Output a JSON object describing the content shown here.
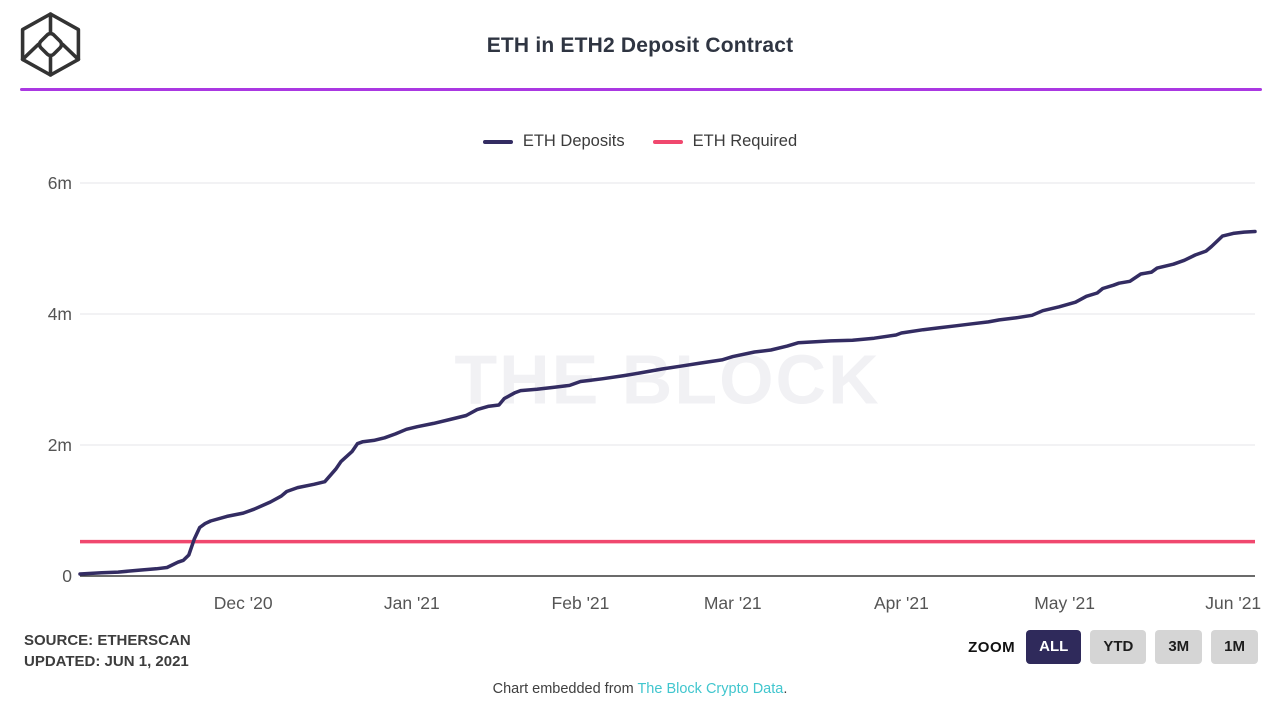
{
  "header": {
    "title": "ETH in ETH2 Deposit Contract"
  },
  "watermark": "THE BLOCK",
  "colors": {
    "accent_rule": "#aa38e2",
    "deposits_line": "#332c62",
    "required_line": "#f0486e",
    "active_button_bg": "#2f2a5b",
    "gridline": "#ebebee",
    "axis_line": "#3a3a3a",
    "axis_text": "#555555",
    "watermark_text": "#f1f1f4",
    "link_teal": "#41c6ce"
  },
  "chart_data": {
    "type": "line",
    "title": "ETH in ETH2 Deposit Contract",
    "legend_position": "top-center",
    "grid": "horizontal",
    "x_axis": {
      "type": "time",
      "start": "2020-11-01",
      "end": "2021-06-05",
      "ticks": [
        {
          "date": "2020-12-01",
          "label": "Dec '20"
        },
        {
          "date": "2021-01-01",
          "label": "Jan '21"
        },
        {
          "date": "2021-02-01",
          "label": "Feb '21"
        },
        {
          "date": "2021-03-01",
          "label": "Mar '21"
        },
        {
          "date": "2021-04-01",
          "label": "Apr '21"
        },
        {
          "date": "2021-05-01",
          "label": "May '21"
        },
        {
          "date": "2021-06-01",
          "label": "Jun '21"
        }
      ]
    },
    "y_axis": {
      "unit": "millions of ETH",
      "min": 0,
      "max": 6,
      "gridlines": [
        2,
        4,
        6
      ],
      "ticks": [
        {
          "value": 0,
          "label": "0"
        },
        {
          "value": 2,
          "label": "2m"
        },
        {
          "value": 4,
          "label": "4m"
        },
        {
          "value": 6,
          "label": "6m"
        }
      ]
    },
    "series": [
      {
        "name": "ETH Deposits",
        "type": "line",
        "color": "#332c62",
        "points": [
          [
            "2020-11-01",
            0.03
          ],
          [
            "2020-11-05",
            0.05
          ],
          [
            "2020-11-08",
            0.06
          ],
          [
            "2020-11-12",
            0.09
          ],
          [
            "2020-11-15",
            0.11
          ],
          [
            "2020-11-17",
            0.13
          ],
          [
            "2020-11-19",
            0.21
          ],
          [
            "2020-11-20",
            0.24
          ],
          [
            "2020-11-21",
            0.32
          ],
          [
            "2020-11-22",
            0.56
          ],
          [
            "2020-11-23",
            0.74
          ],
          [
            "2020-11-24",
            0.8
          ],
          [
            "2020-11-25",
            0.84
          ],
          [
            "2020-11-28",
            0.91
          ],
          [
            "2020-12-01",
            0.96
          ],
          [
            "2020-12-03",
            1.02
          ],
          [
            "2020-12-06",
            1.13
          ],
          [
            "2020-12-08",
            1.22
          ],
          [
            "2020-12-09",
            1.29
          ],
          [
            "2020-12-11",
            1.35
          ],
          [
            "2020-12-14",
            1.4
          ],
          [
            "2020-12-16",
            1.44
          ],
          [
            "2020-12-18",
            1.63
          ],
          [
            "2020-12-19",
            1.75
          ],
          [
            "2020-12-21",
            1.9
          ],
          [
            "2020-12-22",
            2.02
          ],
          [
            "2020-12-23",
            2.05
          ],
          [
            "2020-12-25",
            2.07
          ],
          [
            "2020-12-27",
            2.11
          ],
          [
            "2020-12-29",
            2.17
          ],
          [
            "2020-12-31",
            2.24
          ],
          [
            "2021-01-02",
            2.28
          ],
          [
            "2021-01-05",
            2.33
          ],
          [
            "2021-01-08",
            2.39
          ],
          [
            "2021-01-11",
            2.45
          ],
          [
            "2021-01-13",
            2.54
          ],
          [
            "2021-01-15",
            2.59
          ],
          [
            "2021-01-17",
            2.61
          ],
          [
            "2021-01-18",
            2.71
          ],
          [
            "2021-01-20",
            2.8
          ],
          [
            "2021-01-21",
            2.83
          ],
          [
            "2021-01-24",
            2.85
          ],
          [
            "2021-01-27",
            2.88
          ],
          [
            "2021-01-30",
            2.91
          ],
          [
            "2021-02-01",
            2.97
          ],
          [
            "2021-02-05",
            3.01
          ],
          [
            "2021-02-09",
            3.06
          ],
          [
            "2021-02-12",
            3.1
          ],
          [
            "2021-02-16",
            3.16
          ],
          [
            "2021-02-20",
            3.21
          ],
          [
            "2021-02-23",
            3.25
          ],
          [
            "2021-02-27",
            3.3
          ],
          [
            "2021-03-01",
            3.35
          ],
          [
            "2021-03-05",
            3.42
          ],
          [
            "2021-03-08",
            3.45
          ],
          [
            "2021-03-11",
            3.51
          ],
          [
            "2021-03-13",
            3.56
          ],
          [
            "2021-03-19",
            3.59
          ],
          [
            "2021-03-23",
            3.6
          ],
          [
            "2021-03-27",
            3.63
          ],
          [
            "2021-03-31",
            3.68
          ],
          [
            "2021-04-01",
            3.71
          ],
          [
            "2021-04-05",
            3.76
          ],
          [
            "2021-04-08",
            3.79
          ],
          [
            "2021-04-11",
            3.82
          ],
          [
            "2021-04-14",
            3.85
          ],
          [
            "2021-04-17",
            3.88
          ],
          [
            "2021-04-19",
            3.91
          ],
          [
            "2021-04-22",
            3.94
          ],
          [
            "2021-04-25",
            3.98
          ],
          [
            "2021-04-27",
            4.05
          ],
          [
            "2021-04-30",
            4.11
          ],
          [
            "2021-05-03",
            4.18
          ],
          [
            "2021-05-05",
            4.27
          ],
          [
            "2021-05-07",
            4.32
          ],
          [
            "2021-05-08",
            4.39
          ],
          [
            "2021-05-10",
            4.44
          ],
          [
            "2021-05-11",
            4.47
          ],
          [
            "2021-05-13",
            4.5
          ],
          [
            "2021-05-15",
            4.61
          ],
          [
            "2021-05-17",
            4.64
          ],
          [
            "2021-05-18",
            4.7
          ],
          [
            "2021-05-21",
            4.76
          ],
          [
            "2021-05-23",
            4.82
          ],
          [
            "2021-05-25",
            4.9
          ],
          [
            "2021-05-27",
            4.96
          ],
          [
            "2021-05-28",
            5.03
          ],
          [
            "2021-05-30",
            5.19
          ],
          [
            "2021-06-01",
            5.23
          ],
          [
            "2021-06-03",
            5.25
          ],
          [
            "2021-06-05",
            5.26
          ]
        ]
      },
      {
        "name": "ETH Required",
        "type": "constant-line",
        "color": "#f0486e",
        "value": 0.5243
      }
    ]
  },
  "source": {
    "line1": "SOURCE: ETHERSCAN",
    "line2": "UPDATED: JUN 1, 2021"
  },
  "zoom": {
    "label": "ZOOM",
    "options": [
      {
        "label": "ALL",
        "active": true
      },
      {
        "label": "YTD",
        "active": false
      },
      {
        "label": "3M",
        "active": false
      },
      {
        "label": "1M",
        "active": false
      }
    ]
  },
  "footer": {
    "prefix": "Chart embedded from ",
    "link_text": "The Block Crypto Data",
    "suffix": "."
  }
}
